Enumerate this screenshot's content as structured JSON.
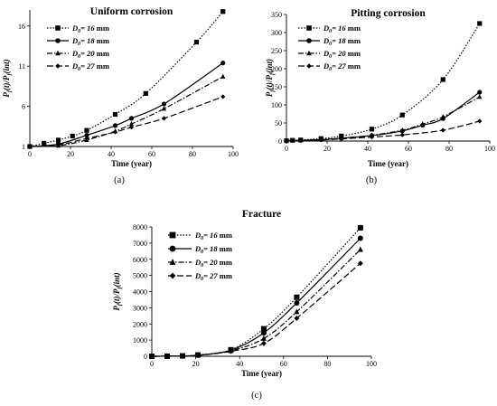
{
  "chart_data": [
    {
      "type": "line",
      "caption": "(a)",
      "title": "Uniform corrosion",
      "xlabel": "Time (year)",
      "ylabel": "P_f(t)/P_f(int)",
      "xlim": [
        0,
        100
      ],
      "ylim": [
        1,
        18
      ],
      "xticks": [
        0,
        20,
        40,
        60,
        80,
        100
      ],
      "yticks": [
        1,
        6,
        11,
        16
      ],
      "grid": false,
      "legend_position": "top-left",
      "series": [
        {
          "name": "D0= 16 mm",
          "marker": "square",
          "dash": "dotted",
          "x": [
            0,
            7,
            14,
            21,
            28,
            42,
            57,
            82,
            95
          ],
          "y": [
            1.0,
            1.4,
            1.8,
            2.3,
            3.0,
            5.0,
            7.6,
            14.0,
            17.8
          ]
        },
        {
          "name": "D0= 18 mm",
          "marker": "circle",
          "dash": "solid",
          "x": [
            0,
            14,
            28,
            42,
            50,
            66,
            95
          ],
          "y": [
            1.0,
            1.3,
            2.4,
            3.6,
            4.5,
            6.3,
            11.4
          ]
        },
        {
          "name": "D0= 20 mm",
          "marker": "triangle",
          "dash": "dashdot",
          "x": [
            0,
            14,
            28,
            42,
            50,
            66,
            95
          ],
          "y": [
            1.0,
            1.1,
            1.8,
            2.9,
            3.8,
            5.7,
            9.7
          ]
        },
        {
          "name": "D0= 27 mm",
          "marker": "diamond",
          "dash": "longdash",
          "x": [
            0,
            14,
            28,
            42,
            50,
            66,
            95
          ],
          "y": [
            1.0,
            1.2,
            2.0,
            2.8,
            3.4,
            4.5,
            7.2
          ]
        }
      ]
    },
    {
      "type": "line",
      "caption": "(b)",
      "title": "Pitting corrosion",
      "xlabel": "Time (year)",
      "ylabel": "P_f(t)/P_f(int)",
      "xlim": [
        0,
        100
      ],
      "ylim": [
        0,
        350
      ],
      "xticks": [
        0,
        20,
        40,
        60,
        80,
        100
      ],
      "yticks": [
        0,
        50,
        100,
        150,
        200,
        250,
        300,
        350
      ],
      "grid": false,
      "legend_position": "top-left",
      "series": [
        {
          "name": "D0= 16 mm",
          "marker": "square",
          "dash": "dotted",
          "x": [
            0,
            3,
            7,
            17,
            27,
            42,
            57,
            77,
            95
          ],
          "y": [
            1,
            2,
            3,
            7,
            14,
            33,
            72,
            170,
            325
          ]
        },
        {
          "name": "D0= 18 mm",
          "marker": "circle",
          "dash": "solid",
          "x": [
            0,
            7,
            17,
            27,
            42,
            57,
            67,
            77,
            95
          ],
          "y": [
            1,
            2,
            4,
            8,
            15,
            28,
            44,
            62,
            135
          ]
        },
        {
          "name": "D0= 20 mm",
          "marker": "triangle",
          "dash": "dashdot",
          "x": [
            0,
            7,
            17,
            27,
            42,
            57,
            67,
            77,
            95
          ],
          "y": [
            1,
            2,
            4,
            8,
            16,
            30,
            47,
            67,
            122
          ]
        },
        {
          "name": "D0= 27 mm",
          "marker": "diamond",
          "dash": "longdash",
          "x": [
            0,
            7,
            17,
            27,
            42,
            57,
            77,
            95
          ],
          "y": [
            1,
            2,
            3,
            6,
            11,
            17,
            30,
            55
          ]
        }
      ]
    },
    {
      "type": "line",
      "caption": "(c)",
      "title": "Fracture",
      "xlabel": "Time (year)",
      "ylabel": "P_f(t)/P_f(int)",
      "xlim": [
        0,
        100
      ],
      "ylim": [
        0,
        8000
      ],
      "xticks": [
        0,
        20,
        40,
        60,
        80,
        100
      ],
      "yticks": [
        0,
        1000,
        2000,
        3000,
        4000,
        5000,
        6000,
        7000,
        8000
      ],
      "grid": false,
      "legend_position": "top-left",
      "series": [
        {
          "name": "D0= 16 mm",
          "marker": "square",
          "dash": "dotted",
          "x": [
            0,
            7,
            14,
            21,
            36,
            51,
            66,
            95
          ],
          "y": [
            0,
            5,
            20,
            80,
            400,
            1700,
            3650,
            7950
          ]
        },
        {
          "name": "D0= 18 mm",
          "marker": "circle",
          "dash": "solid",
          "x": [
            0,
            7,
            14,
            21,
            36,
            51,
            66,
            95
          ],
          "y": [
            0,
            5,
            18,
            70,
            370,
            1450,
            3300,
            7300
          ]
        },
        {
          "name": "D0= 20 mm",
          "marker": "triangle",
          "dash": "dashdot",
          "x": [
            0,
            7,
            14,
            21,
            36,
            51,
            66,
            95
          ],
          "y": [
            0,
            5,
            16,
            60,
            340,
            1100,
            2750,
            6600
          ]
        },
        {
          "name": "D0= 27 mm",
          "marker": "diamond",
          "dash": "longdash",
          "x": [
            0,
            7,
            14,
            21,
            36,
            51,
            66,
            95
          ],
          "y": [
            0,
            5,
            14,
            50,
            310,
            800,
            2350,
            5750
          ]
        }
      ]
    }
  ]
}
